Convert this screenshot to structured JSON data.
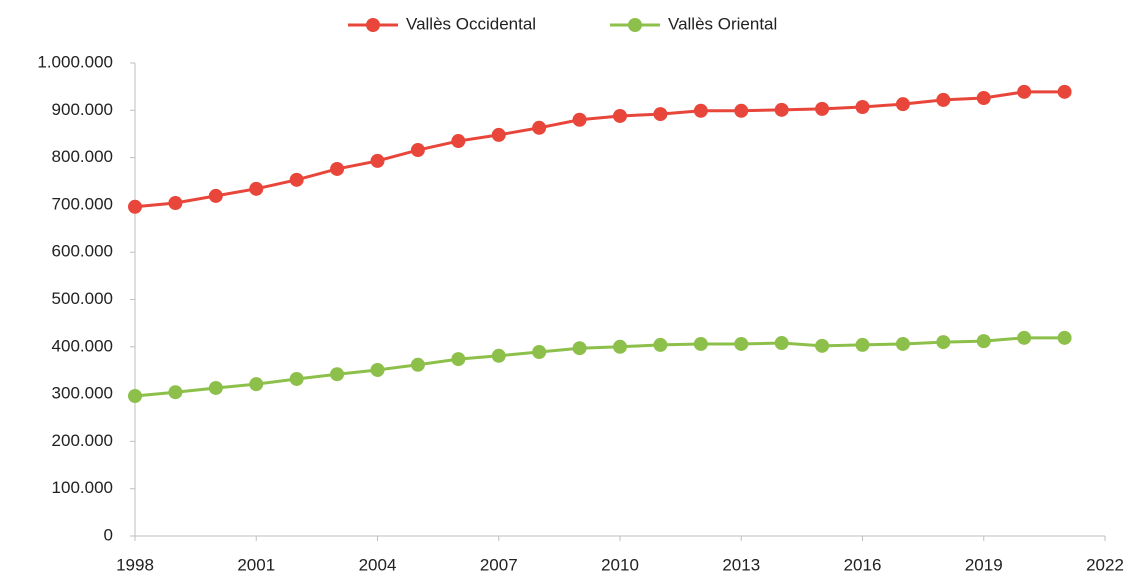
{
  "chart_data": {
    "type": "line",
    "x": [
      1998,
      1999,
      2000,
      2001,
      2002,
      2003,
      2004,
      2005,
      2006,
      2007,
      2008,
      2009,
      2010,
      2011,
      2012,
      2013,
      2014,
      2015,
      2016,
      2017,
      2018,
      2019,
      2020,
      2021
    ],
    "series": [
      {
        "name": "Vallès Occidental",
        "color": "#e8463a",
        "values": [
          696000,
          704000,
          719000,
          734000,
          753000,
          776000,
          793000,
          816000,
          835000,
          848000,
          863000,
          880000,
          888000,
          892000,
          899000,
          899000,
          901000,
          903000,
          907000,
          913000,
          922000,
          926000,
          939000,
          939000
        ]
      },
      {
        "name": "Vallès Oriental",
        "color": "#8dc04a",
        "values": [
          296000,
          304000,
          313000,
          321000,
          332000,
          342000,
          351000,
          362000,
          374000,
          381000,
          389000,
          397000,
          400000,
          404000,
          406000,
          406000,
          408000,
          402000,
          404000,
          406000,
          410000,
          412000,
          419000,
          419000
        ]
      }
    ],
    "xlim": [
      1998,
      2022
    ],
    "xticks": [
      1998,
      2001,
      2004,
      2007,
      2010,
      2013,
      2016,
      2019,
      2022
    ],
    "ylim": [
      0,
      1000000
    ],
    "yticks": [
      0,
      {
        "value": 100000,
        "label": "100.000"
      },
      {
        "value": 200000,
        "label": "200.000"
      },
      {
        "value": 300000,
        "label": "300.000"
      },
      {
        "value": 400000,
        "label": "400.000"
      },
      {
        "value": 500000,
        "label": "500.000"
      },
      {
        "value": 600000,
        "label": "600.000"
      },
      {
        "value": 700000,
        "label": "700.000"
      },
      {
        "value": 800000,
        "label": "800.000"
      },
      {
        "value": 900000,
        "label": "900.000"
      },
      {
        "value": 1000000,
        "label": "1.000.000"
      }
    ],
    "grid": false,
    "legend": "top"
  }
}
